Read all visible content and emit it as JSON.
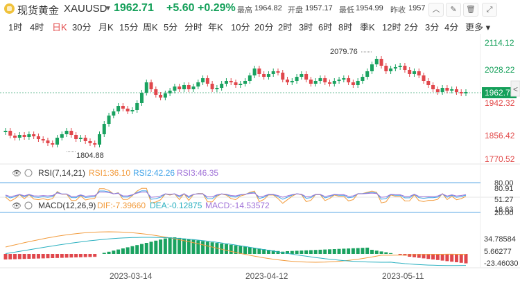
{
  "header": {
    "name": "现货黄金",
    "symbol": "XAUUSD",
    "price": "1962.71",
    "change": "+5.60",
    "change_pct": "+0.29%",
    "stats": [
      {
        "label": "最高",
        "value": "1964.82"
      },
      {
        "label": "开盘",
        "value": "1957.17"
      },
      {
        "label": "最低",
        "value": "1954.99"
      },
      {
        "label": "昨收",
        "value": "1957"
      }
    ],
    "icons": [
      "collapse-icon",
      "edit-icon",
      "trash-icon",
      "expand-icon"
    ]
  },
  "tabs": [
    "1时",
    "4时",
    "日K",
    "30分",
    "月K",
    "15分",
    "周K",
    "5分",
    "分时",
    "年K",
    "10分",
    "20分",
    "2时",
    "3时",
    "6时",
    "8时",
    "季K",
    "12时",
    "2分",
    "3分",
    "4分",
    "更多"
  ],
  "active_tab": "日K",
  "main_chart": {
    "price_axis": [
      "2114.12",
      "2028.22",
      "1942.32",
      "1856.42",
      "1770.52"
    ],
    "current_price_tag": "1962.73",
    "high_label": "2079.76",
    "low_label": "1804.88",
    "colors": {
      "up": "#1aa260",
      "down": "#e0474c",
      "last": "#e24a4a"
    }
  },
  "rsi": {
    "title": "RSI(7,14,21)",
    "rsi1": "RSI1:36.10",
    "rsi2": "RSI2:42.26",
    "rsi3": "RSI3:46.35",
    "axis": [
      "80.00",
      "80.91",
      "51.27",
      "20.00",
      "16.63"
    ],
    "colors": {
      "rsi1": "#f29b3c",
      "rsi2": "#3ea2e8",
      "rsi3": "#a173d8"
    }
  },
  "macd": {
    "title": "MACD(12,26,9)",
    "dif": "DIF:-7.39660",
    "dea": "DEA:-0.12875",
    "macd": "MACD:-14.53572",
    "axis": [
      "34.78584",
      "5.66277",
      "-23.46030"
    ],
    "colors": {
      "dif": "#f29b3c",
      "dea": "#2ab0c0",
      "macd": "#a173d8"
    }
  },
  "date_axis": [
    "2023-03-14",
    "2023-04-12",
    "2023-05-11"
  ],
  "side_arrow": "<"
}
